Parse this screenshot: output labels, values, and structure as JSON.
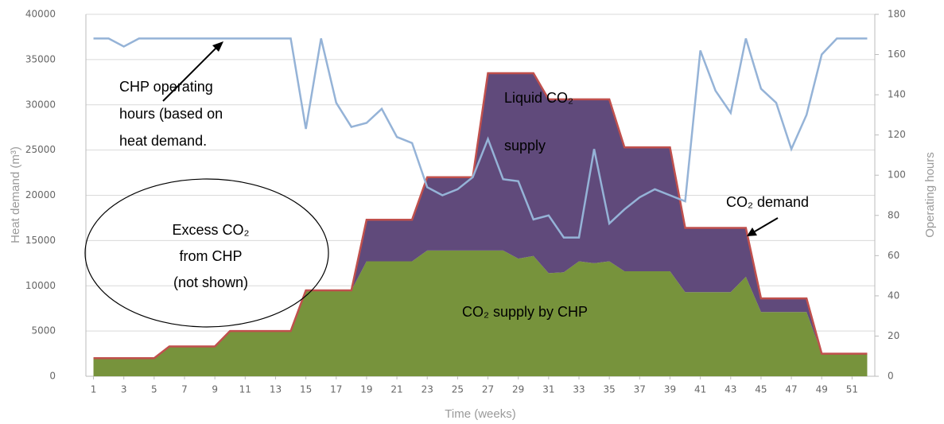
{
  "chart_data": {
    "type": "stacked_area_line",
    "x": [
      1,
      2,
      3,
      4,
      5,
      6,
      7,
      8,
      9,
      10,
      11,
      12,
      13,
      14,
      15,
      16,
      17,
      18,
      19,
      20,
      21,
      22,
      23,
      24,
      25,
      26,
      27,
      28,
      29,
      30,
      31,
      32,
      33,
      34,
      35,
      36,
      37,
      38,
      39,
      40,
      41,
      42,
      43,
      44,
      45,
      46,
      47,
      48,
      49,
      50,
      51,
      52
    ],
    "xlim": [
      0.5,
      52.5
    ],
    "xticks": [
      1,
      3,
      5,
      7,
      9,
      11,
      13,
      15,
      17,
      19,
      21,
      23,
      25,
      27,
      29,
      31,
      33,
      35,
      37,
      39,
      41,
      43,
      45,
      47,
      49,
      51
    ],
    "ylim": [
      0,
      40000
    ],
    "yticks": [
      0,
      5000,
      10000,
      15000,
      20000,
      25000,
      30000,
      35000,
      40000
    ],
    "y2lim": [
      0,
      180
    ],
    "y2ticks": [
      0,
      20,
      40,
      60,
      80,
      100,
      120,
      140,
      160,
      180
    ],
    "grid": true,
    "outline_color": "#c0504d",
    "xlabel": "Time (weeks)",
    "ylabel": "Heat demand (m³)",
    "y2label": "Operating hours",
    "series": [
      {
        "color": "#77933c",
        "values": [
          2000,
          2000,
          2000,
          2000,
          2000,
          3300,
          3300,
          3300,
          3300,
          5000,
          5000,
          5000,
          5000,
          5000,
          9500,
          9500,
          9500,
          9500,
          12700,
          12700,
          12700,
          12700,
          13900,
          13900,
          13900,
          13900,
          13900,
          13900,
          13000,
          13300,
          11400,
          11500,
          12700,
          12500,
          12700,
          11600,
          11600,
          11600,
          11600,
          9300,
          9300,
          9300,
          9300,
          11000,
          7100,
          7100,
          7100,
          7100,
          2500,
          2500,
          2500,
          2500
        ]
      },
      {
        "color": "#604a7b",
        "values": [
          0,
          0,
          0,
          0,
          0,
          0,
          0,
          0,
          0,
          0,
          0,
          0,
          0,
          0,
          0,
          0,
          0,
          0,
          4600,
          4600,
          4600,
          4600,
          8100,
          8100,
          8100,
          8100,
          19600,
          19600,
          20500,
          20200,
          19200,
          19100,
          17900,
          18100,
          17900,
          13700,
          13700,
          13700,
          13700,
          7100,
          7100,
          7100,
          7100,
          5400,
          1500,
          1500,
          1500,
          1500,
          0,
          0,
          0,
          0
        ]
      },
      {
        "color": "#95b3d7",
        "axis": "y2",
        "values": [
          168,
          168,
          164,
          168,
          168,
          168,
          168,
          168,
          168,
          168,
          168,
          168,
          168,
          168,
          123,
          168,
          136,
          124,
          126,
          133,
          119,
          116,
          94,
          90,
          93,
          99,
          118,
          98,
          97,
          78,
          80,
          69,
          69,
          113,
          76,
          83,
          89,
          93,
          90,
          87,
          162,
          142,
          131,
          168,
          143,
          136,
          113,
          130,
          160,
          168,
          168,
          168
        ]
      }
    ],
    "annotations": [
      [
        "CHP operating",
        "hours (based on",
        "heat demand."
      ],
      [
        "Liquid CO₂",
        "supply"
      ],
      [
        "CO₂ demand"
      ],
      [
        "Excess CO₂",
        "from CHP",
        "(not shown)"
      ],
      [
        "CO₂ supply by CHP"
      ]
    ]
  }
}
